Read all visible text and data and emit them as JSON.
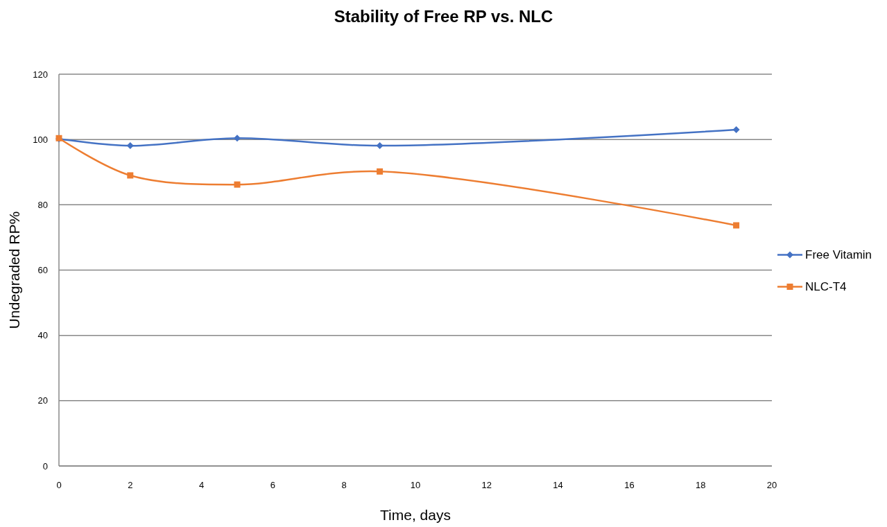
{
  "chart_data": {
    "type": "line",
    "title": "Stability of Free RP vs. NLC",
    "xlabel": "Time, days",
    "ylabel": "Undegraded RP%",
    "xlim": [
      0,
      20
    ],
    "xticks": [
      0,
      2,
      4,
      6,
      8,
      10,
      12,
      14,
      16,
      18,
      20
    ],
    "ylim": [
      0,
      120
    ],
    "yticks": [
      0,
      20,
      40,
      60,
      80,
      100,
      120
    ],
    "grid": "y",
    "legend": "right",
    "series": [
      {
        "name": "Free Vitamin",
        "color": "#4472c4",
        "marker": "diamond",
        "x": [
          0,
          2,
          5,
          9,
          19
        ],
        "values": [
          100.2,
          98.1,
          100.4,
          98.1,
          103
        ]
      },
      {
        "name": "NLC-T4",
        "color": "#ed7d31",
        "marker": "square",
        "x": [
          0,
          2,
          5,
          9,
          19
        ],
        "values": [
          100.4,
          89,
          86.2,
          90.2,
          73.7
        ]
      }
    ]
  }
}
